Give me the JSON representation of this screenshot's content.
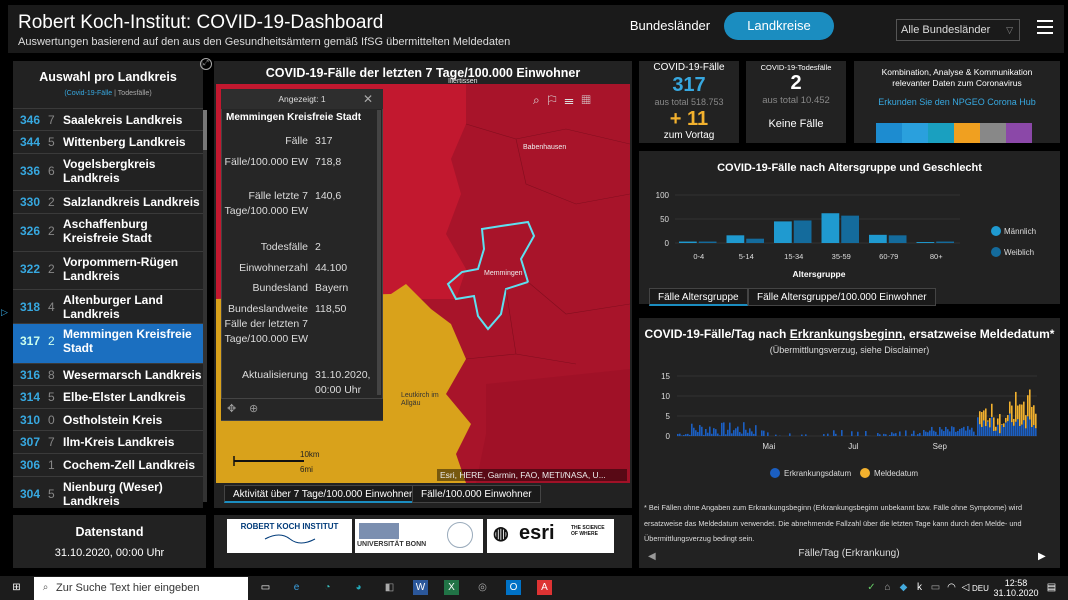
{
  "header": {
    "title": "Robert Koch-Institut: COVID-19-Dashboard",
    "subtitle": "Auswertungen basierend auf den aus den Gesundheitsämtern gemäß IfSG übermittelten Meldedaten",
    "btn_bundeslaender": "Bundesländer",
    "btn_landkreise": "Landkreise",
    "select_value": "Alle Bundesländer"
  },
  "left": {
    "title": "Auswahl pro Landkreis",
    "legend_a": "(Covid-19-Fälle",
    "legend_sep": " | ",
    "legend_b": "Todesfälle)",
    "items": [
      {
        "n": "346",
        "d": "7",
        "name": "Saalekreis Landkreis"
      },
      {
        "n": "344",
        "d": "5",
        "name": "Wittenberg Landkreis"
      },
      {
        "n": "336",
        "d": "6",
        "name": "Vogelsbergkreis Landkreis"
      },
      {
        "n": "330",
        "d": "2",
        "name": "Salzlandkreis Landkreis"
      },
      {
        "n": "326",
        "d": "2",
        "name": "Aschaffenburg Kreisfreie Stadt"
      },
      {
        "n": "322",
        "d": "2",
        "name": "Vorpommern-Rügen Landkreis"
      },
      {
        "n": "318",
        "d": "4",
        "name": "Altenburger Land Landkreis"
      },
      {
        "n": "317",
        "d": "2",
        "name": "Memmingen Kreisfreie Stadt"
      },
      {
        "n": "316",
        "d": "8",
        "name": "Wesermarsch Landkreis"
      },
      {
        "n": "314",
        "d": "5",
        "name": "Elbe-Elster Landkreis"
      },
      {
        "n": "310",
        "d": "0",
        "name": "Ostholstein Kreis"
      },
      {
        "n": "307",
        "d": "7",
        "name": "Ilm-Kreis Landkreis"
      },
      {
        "n": "306",
        "d": "1",
        "name": "Cochem-Zell Landkreis"
      },
      {
        "n": "304",
        "d": "5",
        "name": "Nienburg (Weser) Landkreis"
      }
    ],
    "datenstand_title": "Datenstand",
    "datenstand_value": "31.10.2020, 00:00 Uhr"
  },
  "map": {
    "title": "COVID-19-Fälle der letzten 7 Tage/100.000 Einwohner",
    "popup_header": "Angezeigt: 1",
    "popup_name": "Memmingen Kreisfreie Stadt",
    "rows": [
      {
        "label": "Fälle",
        "value": "317"
      },
      {
        "label": "Fälle/100.000 EW",
        "value": "718,8"
      },
      {
        "label": "Fälle letzte 7 Tage/100.000 EW",
        "value": "140,6"
      },
      {
        "label": "Todesfälle",
        "value": "2"
      },
      {
        "label": "Einwohnerzahl",
        "value": "44.100"
      },
      {
        "label": "Bundesland",
        "value": "Bayern"
      },
      {
        "label": "Bundeslandweite Fälle der letzten 7 Tage/100.000 EW",
        "value": "118,50"
      },
      {
        "label": "Aktualisierung",
        "value": "31.10.2020, 00:00 Uhr"
      }
    ],
    "place_babenhausen": "Babenhausen",
    "place_memmingen": "Memmingen",
    "place_leutkirch": "Leutkirch im Allgäu",
    "place_top": "Illertissen",
    "scale_km": "10km",
    "scale_mi": "6mi",
    "attribution": "Esri, HERE, Garmin, FAO, METI/NASA, U...",
    "tab1": "Aktivität über 7 Tage/100.000 Einwohner",
    "tab2": "Fälle/100.000 Einwohner"
  },
  "logos": {
    "rki": "ROBERT KOCH INSTITUT",
    "bonn": "UNIVERSITÄT BONN",
    "esri": "esri",
    "esri_tag": "THE SCIENCE OF WHERE"
  },
  "kpi": {
    "cases_label": "COVID-19-Fälle",
    "cases_value": "317",
    "cases_total": "aus total 518.753",
    "cases_delta": "+ 11",
    "cases_delta_label": "zum Vortag",
    "deaths_label": "COVID-19-Todesfälle",
    "deaths_value": "2",
    "deaths_total": "aus total 10.452",
    "deaths_delta_label": "Keine Fälle",
    "hub_text": "Kombination, Analyse & Kommunikation relevanter Daten zum Coronavirus",
    "hub_link": "Erkunden Sie den NPGEO Corona Hub"
  },
  "age_chart": {
    "title": "COVID-19-Fälle nach Altersgruppe und Geschlecht",
    "xlabel": "Altersgruppe",
    "tab1": "Fälle Altersgruppe",
    "tab2": "Fälle Altersgruppe/100.000 Einwohner",
    "legend": [
      "Männlich",
      "Weiblich"
    ]
  },
  "epi_chart": {
    "title_pre": "COVID-19-Fälle/Tag nach ",
    "title_u": "Erkrankungsbeginn",
    "title_post": ", ersatzweise Meldedatum*",
    "subtitle": "(Übermittlungsverzug, siehe Disclaimer)",
    "legend": [
      "Erkrankungsdatum",
      "Meldedatum"
    ],
    "note": "* Bei Fällen ohne Angaben zum Erkrankungsbeginn (Erkrankungsbeginn unbekannt bzw. Fälle ohne Symptome) wird ersatzweise das Meldedatum verwendet. Die abnehmende Fallzahl über die letzten Tage kann durch den Melde- und Übermittlungsverzug bedingt sein.",
    "footer": "Fälle/Tag (Erkrankung)"
  },
  "chart_data": [
    {
      "type": "bar",
      "title": "COVID-19-Fälle nach Altersgruppe und Geschlecht",
      "xlabel": "Altersgruppe",
      "categories": [
        "0-4",
        "5-14",
        "15-34",
        "35-59",
        "60-79",
        "80+"
      ],
      "ylim": [
        0,
        100
      ],
      "yticks": [
        0,
        50,
        100
      ],
      "series": [
        {
          "name": "Männlich",
          "color": "#1f9ad0",
          "values": [
            3,
            16,
            45,
            62,
            17,
            2
          ]
        },
        {
          "name": "Weiblich",
          "color": "#146b9c",
          "values": [
            3,
            9,
            47,
            57,
            16,
            3
          ]
        }
      ]
    },
    {
      "type": "bar",
      "title": "COVID-19-Fälle/Tag nach Erkrankungsbeginn, ersatzweise Meldedatum*",
      "xticks": [
        "Mai",
        "Jul",
        "Sep"
      ],
      "ylim": [
        0,
        15
      ],
      "yticks": [
        0,
        5,
        10,
        15
      ],
      "series": [
        {
          "name": "Erkrankungsdatum",
          "color": "#1b5fc2"
        },
        {
          "name": "Meldedatum",
          "color": "#f2b12e"
        }
      ]
    }
  ],
  "taskbar": {
    "search": "Zur Suche Text hier eingeben",
    "time": "12:58",
    "date": "31.10.2020",
    "lang": "DEU"
  }
}
